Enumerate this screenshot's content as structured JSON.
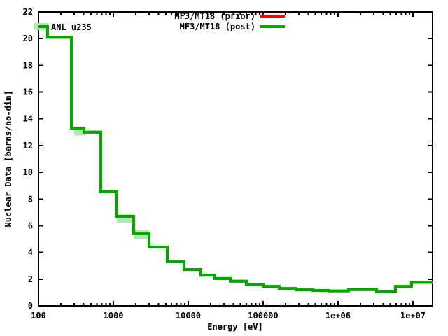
{
  "chart_data": {
    "type": "line",
    "subtype": "step",
    "title": "",
    "xlabel": "Energy [eV]",
    "ylabel": "Nuclear Data [barns/no-dim]",
    "annotation": "ANL u235",
    "x_scale": "log",
    "xlim": [
      100,
      18300000
    ],
    "ylim": [
      0,
      22
    ],
    "grid": false,
    "legend_position": "top-center-inside",
    "x_ticks": [
      {
        "value": 100,
        "label": "100"
      },
      {
        "value": 1000,
        "label": "1000"
      },
      {
        "value": 10000,
        "label": "10000"
      },
      {
        "value": 100000,
        "label": "100000"
      },
      {
        "value": 1000000,
        "label": "1e+06"
      },
      {
        "value": 10000000,
        "label": "1e+07"
      }
    ],
    "y_ticks": [
      {
        "value": 0,
        "label": "0"
      },
      {
        "value": 2,
        "label": "2"
      },
      {
        "value": 4,
        "label": "4"
      },
      {
        "value": 6,
        "label": "6"
      },
      {
        "value": 8,
        "label": "8"
      },
      {
        "value": 10,
        "label": "10"
      },
      {
        "value": 12,
        "label": "12"
      },
      {
        "value": 14,
        "label": "14"
      },
      {
        "value": 16,
        "label": "16"
      },
      {
        "value": 18,
        "label": "18"
      },
      {
        "value": 20,
        "label": "20"
      },
      {
        "value": 22,
        "label": "22"
      }
    ],
    "legend": [
      {
        "label": "MF3/MT18 (prior)",
        "color": "#ff0000"
      },
      {
        "label": "MF3/MT18 (post)",
        "color": "#00ab00"
      }
    ],
    "series": [
      {
        "name": "MF3/MT18 (prior)",
        "color": "#ff0000",
        "style": "step",
        "boundaries": [
          100,
          132,
          275,
          405,
          680,
          1110,
          1870,
          3000,
          5250,
          8790,
          14700,
          22200,
          36400,
          59700,
          100000,
          164000,
          275000,
          461000,
          757000,
          1380000,
          3270000,
          5830000,
          9570000,
          18300000
        ],
        "values": [
          20.9,
          20.1,
          13.3,
          13.0,
          8.55,
          6.7,
          5.4,
          4.4,
          3.3,
          2.72,
          2.3,
          2.05,
          1.85,
          1.6,
          1.45,
          1.3,
          1.2,
          1.15,
          1.12,
          1.22,
          1.05,
          1.45,
          1.76
        ]
      },
      {
        "name": "MF3/MT18 (post)",
        "color": "#00ab00",
        "style": "step",
        "boundaries": [
          100,
          132,
          275,
          405,
          680,
          1110,
          1870,
          3000,
          5250,
          8790,
          14700,
          22200,
          36400,
          59700,
          100000,
          164000,
          275000,
          461000,
          757000,
          1380000,
          3270000,
          5830000,
          9570000,
          18300000
        ],
        "values": [
          20.9,
          20.1,
          13.3,
          13.0,
          8.55,
          6.7,
          5.4,
          4.4,
          3.3,
          2.72,
          2.3,
          2.05,
          1.85,
          1.6,
          1.45,
          1.3,
          1.2,
          1.15,
          1.12,
          1.22,
          1.05,
          1.45,
          1.76
        ]
      }
    ],
    "uncertainty_band": {
      "color": "#b2e6b2",
      "series": "MF3/MT18 (post)",
      "segments": [
        {
          "x0": 86,
          "x1": 132,
          "y": 20.9,
          "hw": 0.26
        },
        {
          "x0": 300,
          "x1": 430,
          "y": 13.05,
          "hw": 0.3
        },
        {
          "x0": 1110,
          "x1": 1870,
          "y": 6.55,
          "hw": 0.32
        },
        {
          "x0": 1870,
          "x1": 3000,
          "y": 5.35,
          "hw": 0.36
        }
      ]
    }
  }
}
